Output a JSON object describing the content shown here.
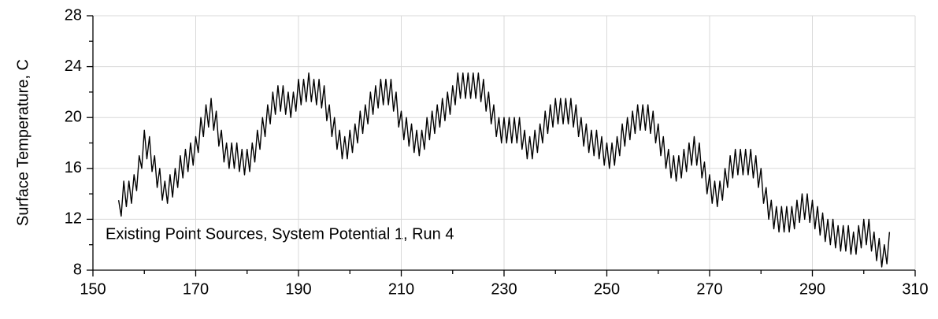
{
  "chart_data": {
    "type": "line",
    "ylabel": "Surface Temperature, C",
    "annotation": "Existing Point Sources, System Potential 1, Run 4",
    "xlim": [
      150,
      310
    ],
    "xticks": [
      150,
      170,
      190,
      210,
      230,
      250,
      270,
      290,
      310
    ],
    "ylim": [
      8,
      28
    ],
    "yticks": [
      8,
      12,
      16,
      20,
      24,
      28
    ],
    "grid": true,
    "minor_ticks": true,
    "x": [
      155,
      155.5,
      156,
      156.5,
      157,
      157.5,
      158,
      158.5,
      159,
      159.5,
      160,
      160.5,
      161,
      161.5,
      162,
      162.5,
      163,
      163.5,
      164,
      164.5,
      165,
      165.5,
      166,
      166.5,
      167,
      167.5,
      168,
      168.5,
      169,
      169.5,
      170,
      170.5,
      171,
      171.5,
      172,
      172.5,
      173,
      173.5,
      174,
      174.5,
      175,
      175.5,
      176,
      176.5,
      177,
      177.5,
      178,
      178.5,
      179,
      179.5,
      180,
      180.5,
      181,
      181.5,
      182,
      182.5,
      183,
      183.5,
      184,
      184.5,
      185,
      185.5,
      186,
      186.5,
      187,
      187.5,
      188,
      188.5,
      189,
      189.5,
      190,
      190.5,
      191,
      191.5,
      192,
      192.5,
      193,
      193.5,
      194,
      194.5,
      195,
      195.5,
      196,
      196.5,
      197,
      197.5,
      198,
      198.5,
      199,
      199.5,
      200,
      200.5,
      201,
      201.5,
      202,
      202.5,
      203,
      203.5,
      204,
      204.5,
      205,
      205.5,
      206,
      206.5,
      207,
      207.5,
      208,
      208.5,
      209,
      209.5,
      210,
      210.5,
      211,
      211.5,
      212,
      212.5,
      213,
      213.5,
      214,
      214.5,
      215,
      215.5,
      216,
      216.5,
      217,
      217.5,
      218,
      218.5,
      219,
      219.5,
      220,
      220.5,
      221,
      221.5,
      222,
      222.5,
      223,
      223.5,
      224,
      224.5,
      225,
      225.5,
      226,
      226.5,
      227,
      227.5,
      228,
      228.5,
      229,
      229.5,
      230,
      230.5,
      231,
      231.5,
      232,
      232.5,
      233,
      233.5,
      234,
      234.5,
      235,
      235.5,
      236,
      236.5,
      237,
      237.5,
      238,
      238.5,
      239,
      239.5,
      240,
      240.5,
      241,
      241.5,
      242,
      242.5,
      243,
      243.5,
      244,
      244.5,
      245,
      245.5,
      246,
      246.5,
      247,
      247.5,
      248,
      248.5,
      249,
      249.5,
      250,
      250.5,
      251,
      251.5,
      252,
      252.5,
      253,
      253.5,
      254,
      254.5,
      255,
      255.5,
      256,
      256.5,
      257,
      257.5,
      258,
      258.5,
      259,
      259.5,
      260,
      260.5,
      261,
      261.5,
      262,
      262.5,
      263,
      263.5,
      264,
      264.5,
      265,
      265.5,
      266,
      266.5,
      267,
      267.5,
      268,
      268.5,
      269,
      269.5,
      270,
      270.5,
      271,
      271.5,
      272,
      272.5,
      273,
      273.5,
      274,
      274.5,
      275,
      275.5,
      276,
      276.5,
      277,
      277.5,
      278,
      278.5,
      279,
      279.5,
      280,
      280.5,
      281,
      281.5,
      282,
      282.5,
      283,
      283.5,
      284,
      284.5,
      285,
      285.5,
      286,
      286.5,
      287,
      287.5,
      288,
      288.5,
      289,
      289.5,
      290,
      290.5,
      291,
      291.5,
      292,
      292.5,
      293,
      293.5,
      294,
      294.5,
      295,
      295.5,
      296,
      296.5,
      297,
      297.5,
      298,
      298.5,
      299,
      299.5,
      300,
      300.5,
      301,
      301.5,
      302,
      302.5,
      303,
      303.5,
      304,
      304.5,
      305
    ],
    "series": [
      {
        "color": "#000000",
        "values": [
          13.5,
          12.25,
          15,
          13,
          15,
          13.25,
          15.5,
          14.25,
          17,
          16,
          19,
          16.75,
          18.5,
          15.75,
          17,
          14.5,
          16,
          13.5,
          15,
          13.25,
          15.5,
          13.75,
          16,
          14.5,
          17,
          15.25,
          17.5,
          15.75,
          18,
          16.25,
          18.5,
          17.25,
          20,
          18.5,
          21,
          19.25,
          21.5,
          19,
          20.5,
          17.75,
          19,
          16.5,
          18,
          16,
          18,
          16,
          18,
          15.75,
          17.5,
          15.5,
          17.5,
          15.75,
          18,
          16.5,
          19,
          17.5,
          20,
          18.5,
          21,
          19.5,
          22,
          20.25,
          22.5,
          20.5,
          22.5,
          20.25,
          22,
          20,
          22,
          20.5,
          23,
          21,
          23,
          21.25,
          23.5,
          21.25,
          23,
          21,
          23,
          20.75,
          22.5,
          19.75,
          21,
          18.5,
          20,
          17.5,
          19,
          16.75,
          18.5,
          16.75,
          19,
          17.25,
          19.5,
          18,
          20.5,
          18.75,
          21,
          19.5,
          22,
          20.25,
          22.5,
          20.75,
          23,
          21,
          23,
          21,
          23,
          20.5,
          22,
          19.25,
          20.5,
          18.25,
          20,
          17.75,
          19.5,
          17.25,
          19,
          17,
          19,
          17.5,
          20,
          18.25,
          20.5,
          18.75,
          21,
          19.25,
          21.5,
          19.75,
          22,
          20.25,
          22.5,
          21,
          23.5,
          21.5,
          23.5,
          21.5,
          23.5,
          21.5,
          23.5,
          21.5,
          23.5,
          21.25,
          23,
          20.5,
          22,
          19.5,
          21,
          18.5,
          20,
          18,
          20,
          18,
          20,
          18,
          20,
          18,
          20,
          17.5,
          19,
          16.75,
          18.5,
          16.75,
          19,
          17.25,
          19.5,
          18,
          20.5,
          18.75,
          21,
          19.25,
          21.5,
          19.5,
          21.5,
          19.5,
          21.5,
          19.5,
          21.5,
          19.25,
          21,
          18.5,
          20,
          17.75,
          19.5,
          17.25,
          19,
          17,
          19,
          16.75,
          18.5,
          16.25,
          18,
          16,
          18,
          16.25,
          18.5,
          17,
          19.5,
          17.75,
          20,
          18.25,
          20.5,
          18.75,
          21,
          19,
          21,
          19,
          21,
          18.75,
          20.5,
          18,
          19.5,
          17,
          18.5,
          16,
          17.5,
          15.25,
          17,
          15,
          17,
          15.25,
          17.5,
          15.75,
          18,
          16.25,
          18.5,
          16.25,
          18,
          15.25,
          16.5,
          14,
          15.5,
          13.25,
          15,
          13,
          15,
          13.5,
          16,
          14.5,
          17,
          15.25,
          17.5,
          15.5,
          17.5,
          15.5,
          17.5,
          15.5,
          17.5,
          15.25,
          17,
          14.5,
          16,
          13.25,
          14.5,
          12,
          13.5,
          11.25,
          13,
          11,
          13,
          11,
          13,
          11,
          13,
          11.25,
          13.5,
          11.75,
          14,
          12,
          14,
          11.75,
          13.5,
          11.25,
          13,
          10.75,
          12.5,
          10.25,
          12,
          10,
          12,
          9.75,
          11.5,
          9.5,
          11.5,
          9.5,
          11.5,
          9.25,
          11,
          9.25,
          11.5,
          9.75,
          12,
          10,
          12,
          9.5,
          11,
          8.75,
          10.5,
          8.25,
          10,
          8.5,
          11
        ]
      }
    ]
  }
}
